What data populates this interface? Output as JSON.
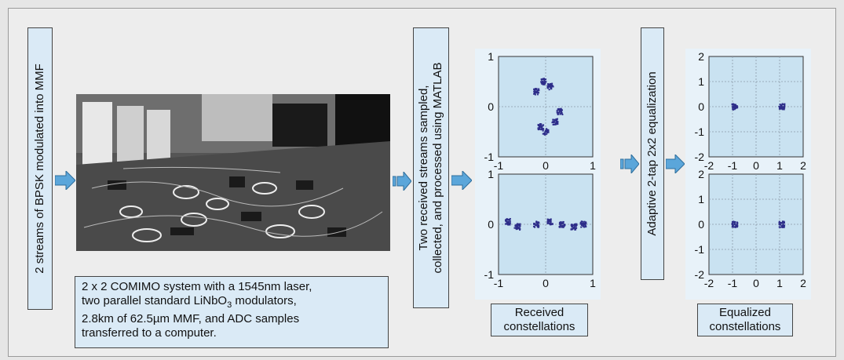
{
  "stage1_label": "2 streams of BPSK modulated into MMF",
  "stage2_label_line1": "Two received streams sampled,",
  "stage2_label_line2": "collected, and processed using MATLAB",
  "stage3_label": "Adaptive 2-tap 2x2 equalization",
  "description": {
    "line1": "2 x 2 COMIMO system with a 1545nm laser,",
    "line2_pre": "two parallel standard LiNbO",
    "line2_sub": "3",
    "line2_post": " modulators,",
    "line3": "2.8km of 62.5µm MMF, and ADC samples",
    "line4": "transferred to a computer."
  },
  "received_caption": {
    "line1": "Received",
    "line2": "constellations"
  },
  "equalized_caption": {
    "line1": "Equalized",
    "line2": "constellations"
  },
  "colors": {
    "plot_bg": "#c9e2f1",
    "points": "#2e2e8a",
    "arrow": "#5ba6da",
    "box": "#daeaf6"
  },
  "chart_data": [
    {
      "type": "scatter",
      "title": "",
      "xlim": [
        -1,
        1
      ],
      "ylim": [
        -1,
        1
      ],
      "xticks": [
        "-1",
        "0",
        "1"
      ],
      "yticks": [
        "-1",
        "0",
        "1"
      ],
      "grid": true,
      "clusters": [
        [
          -0.05,
          0.5
        ],
        [
          0.1,
          0.4
        ],
        [
          -0.2,
          0.3
        ],
        [
          0.3,
          -0.1
        ],
        [
          0.0,
          -0.5
        ],
        [
          -0.1,
          -0.4
        ],
        [
          0.2,
          -0.3
        ]
      ]
    },
    {
      "type": "scatter",
      "title": "",
      "xlim": [
        -1,
        1
      ],
      "ylim": [
        -1,
        1
      ],
      "xticks": [
        "-1",
        "0",
        "1"
      ],
      "yticks": [
        "-1",
        "0",
        "1"
      ],
      "grid": true,
      "clusters": [
        [
          -0.8,
          0.05
        ],
        [
          -0.6,
          -0.05
        ],
        [
          -0.2,
          0.0
        ],
        [
          0.1,
          0.05
        ],
        [
          0.35,
          0.0
        ],
        [
          0.6,
          -0.05
        ],
        [
          0.8,
          0.0
        ]
      ]
    },
    {
      "type": "scatter",
      "title": "",
      "xlim": [
        -2,
        2
      ],
      "ylim": [
        -2,
        2
      ],
      "xticks": [
        "-2",
        "-1",
        "0",
        "1",
        "2"
      ],
      "yticks": [
        "-2",
        "-1",
        "0",
        "1",
        "2"
      ],
      "grid": true,
      "clusters": [
        [
          -0.9,
          0.0
        ],
        [
          1.1,
          0.0
        ]
      ]
    },
    {
      "type": "scatter",
      "title": "",
      "xlim": [
        -2,
        2
      ],
      "ylim": [
        -2,
        2
      ],
      "xticks": [
        "-2",
        "-1",
        "0",
        "1",
        "2"
      ],
      "yticks": [
        "-2",
        "-1",
        "0",
        "1",
        "2"
      ],
      "grid": true,
      "clusters": [
        [
          -0.9,
          0.0
        ],
        [
          1.1,
          0.0
        ]
      ]
    }
  ]
}
